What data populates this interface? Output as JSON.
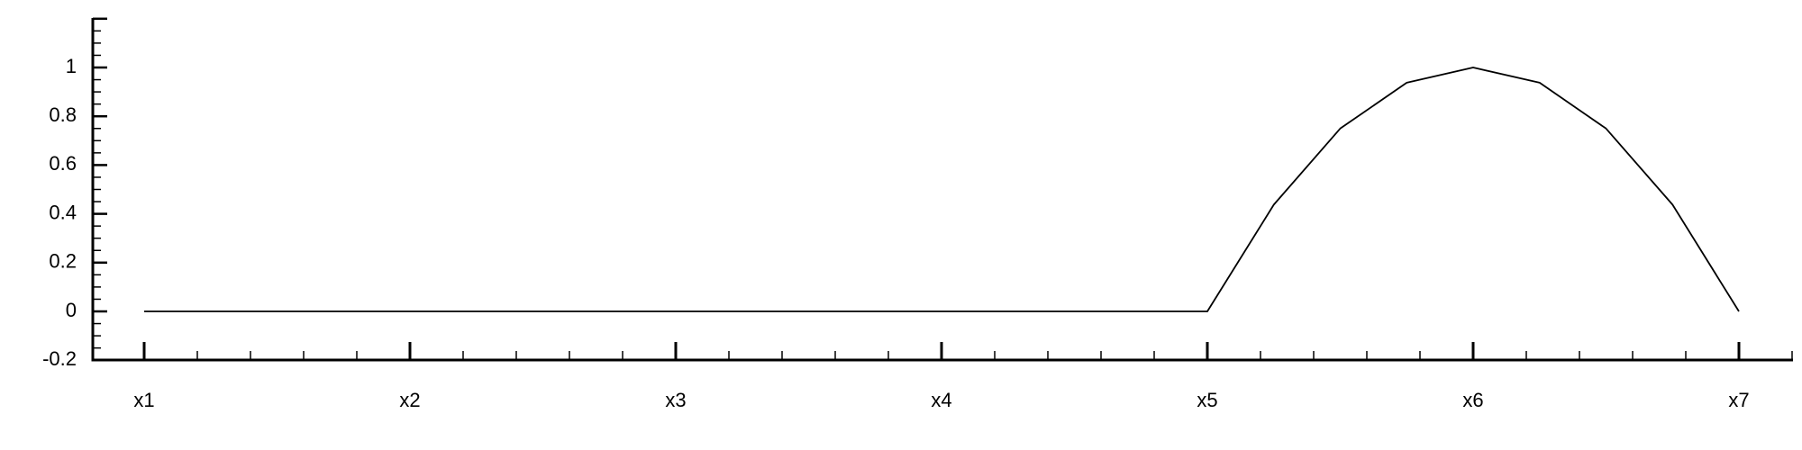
{
  "chart_data": {
    "type": "line",
    "title": "",
    "xlabel": "",
    "ylabel": "",
    "grid": false,
    "legend": "none",
    "categories": [
      "x1",
      "x2",
      "x3",
      "x4",
      "x5",
      "x6",
      "x7"
    ],
    "x_tick_labels": [
      "x1",
      "x2",
      "x3",
      "x4",
      "x5",
      "x6",
      "x7"
    ],
    "y_tick_labels": [
      "1",
      "0.8",
      "0.6",
      "0.4",
      "0.2",
      "0",
      "-0.2"
    ],
    "y_ticks": [
      1,
      0.8,
      0.6,
      0.4,
      0.2,
      0,
      -0.2
    ],
    "xlim": [
      1,
      7.2
    ],
    "ylim": [
      -0.2,
      1.2
    ],
    "series": [
      {
        "x": [
          1,
          2,
          3,
          4,
          5,
          5.25,
          5.5,
          5.75,
          6,
          6.25,
          6.5,
          6.75,
          7
        ],
        "values": [
          0,
          0,
          0,
          0,
          0,
          0.4375,
          0.75,
          0.9375,
          1,
          0.9375,
          0.75,
          0.4375,
          0
        ]
      }
    ],
    "colors": {
      "line": "#000000",
      "axis": "#000000"
    }
  }
}
